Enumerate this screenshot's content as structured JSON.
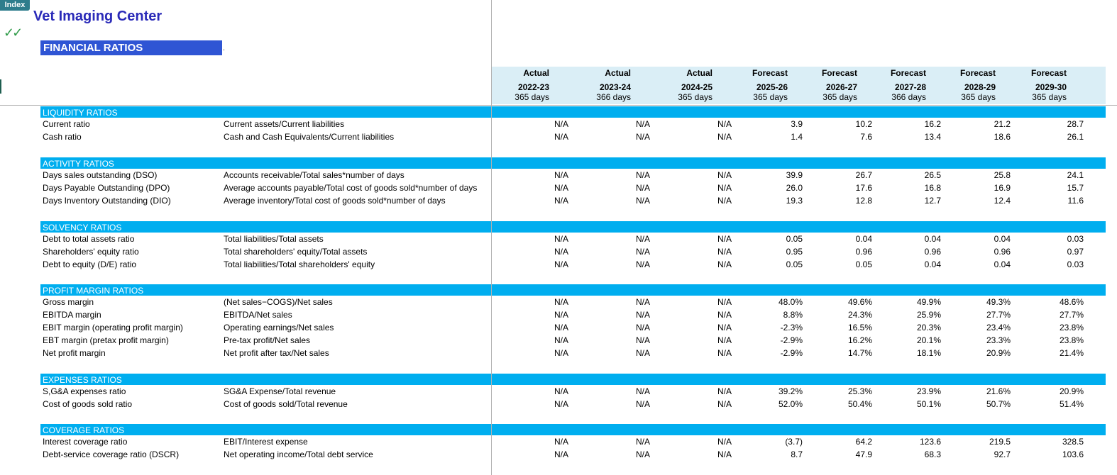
{
  "index_button": "Index",
  "company_name": "Vet Imaging Center",
  "check_mark": "✓✓",
  "section_title": "FINANCIAL RATIOS",
  "dot": ".",
  "columns": [
    {
      "status": "Actual",
      "year": "2022-23",
      "days": "365 days"
    },
    {
      "status": "Actual",
      "year": "2023-24",
      "days": "366 days"
    },
    {
      "status": "Actual",
      "year": "2024-25",
      "days": "365 days"
    },
    {
      "status": "Forecast",
      "year": "2025-26",
      "days": "365 days"
    },
    {
      "status": "Forecast",
      "year": "2026-27",
      "days": "365 days"
    },
    {
      "status": "Forecast",
      "year": "2027-28",
      "days": "366 days"
    },
    {
      "status": "Forecast",
      "year": "2028-29",
      "days": "365 days"
    },
    {
      "status": "Forecast",
      "year": "2029-30",
      "days": "365 days"
    }
  ],
  "sections": [
    {
      "label": "LIQUIDITY RATIOS",
      "rows": [
        {
          "name": "Current ratio",
          "formula": "Current assets/Current liabilities",
          "values": [
            "N/A",
            "N/A",
            "N/A",
            "3.9",
            "10.2",
            "16.2",
            "21.2",
            "28.7"
          ]
        },
        {
          "name": "Cash ratio",
          "formula": "Cash and Cash Equivalents/Current liabilities",
          "values": [
            "N/A",
            "N/A",
            "N/A",
            "1.4",
            "7.6",
            "13.4",
            "18.6",
            "26.1"
          ]
        }
      ]
    },
    {
      "label": "ACTIVITY RATIOS",
      "rows": [
        {
          "name": "Days sales outstanding (DSO)",
          "formula": "Accounts receivable/Total sales*number of days",
          "values": [
            "N/A",
            "N/A",
            "N/A",
            "39.9",
            "26.7",
            "26.5",
            "25.8",
            "24.1"
          ]
        },
        {
          "name": "Days Payable Outstanding (DPO)",
          "formula": "Average accounts payable/Total cost of goods sold*number of days",
          "values": [
            "N/A",
            "N/A",
            "N/A",
            "26.0",
            "17.6",
            "16.8",
            "16.9",
            "15.7"
          ]
        },
        {
          "name": "Days Inventory Outstanding (DIO)",
          "formula": "Average inventory/Total cost of goods sold*number of days",
          "values": [
            "N/A",
            "N/A",
            "N/A",
            "19.3",
            "12.8",
            "12.7",
            "12.4",
            "11.6"
          ]
        }
      ]
    },
    {
      "label": "SOLVENCY RATIOS",
      "rows": [
        {
          "name": "Debt to total assets ratio",
          "formula": "Total liabilities/Total assets",
          "values": [
            "N/A",
            "N/A",
            "N/A",
            "0.05",
            "0.04",
            "0.04",
            "0.04",
            "0.03"
          ]
        },
        {
          "name": "Shareholders' equity ratio",
          "formula": "Total shareholders' equity/Total assets",
          "values": [
            "N/A",
            "N/A",
            "N/A",
            "0.95",
            "0.96",
            "0.96",
            "0.96",
            "0.97"
          ]
        },
        {
          "name": "Debt to equity (D/E) ratio",
          "formula": "Total liabilities/Total shareholders' equity",
          "values": [
            "N/A",
            "N/A",
            "N/A",
            "0.05",
            "0.05",
            "0.04",
            "0.04",
            "0.03"
          ]
        }
      ]
    },
    {
      "label": "PROFIT MARGIN RATIOS",
      "rows": [
        {
          "name": "Gross margin",
          "formula": "(Net sales−COGS)/Net sales",
          "values": [
            "N/A",
            "N/A",
            "N/A",
            "48.0%",
            "49.6%",
            "49.9%",
            "49.3%",
            "48.6%"
          ]
        },
        {
          "name": "EBITDA margin",
          "formula": "EBITDA/Net sales",
          "values": [
            "N/A",
            "N/A",
            "N/A",
            "8.8%",
            "24.3%",
            "25.9%",
            "27.7%",
            "27.7%"
          ]
        },
        {
          "name": "EBIT margin (operating profit margin)",
          "formula": "Operating earnings/Net sales",
          "values": [
            "N/A",
            "N/A",
            "N/A",
            "-2.3%",
            "16.5%",
            "20.3%",
            "23.4%",
            "23.8%"
          ]
        },
        {
          "name": "EBT margin (pretax profit margin)",
          "formula": "Pre-tax profit/Net sales",
          "values": [
            "N/A",
            "N/A",
            "N/A",
            "-2.9%",
            "16.2%",
            "20.1%",
            "23.3%",
            "23.8%"
          ]
        },
        {
          "name": "Net profit margin",
          "formula": "Net profit after tax/Net sales",
          "values": [
            "N/A",
            "N/A",
            "N/A",
            "-2.9%",
            "14.7%",
            "18.1%",
            "20.9%",
            "21.4%"
          ]
        }
      ]
    },
    {
      "label": "EXPENSES RATIOS",
      "rows": [
        {
          "name": "S,G&A expenses ratio",
          "formula": "SG&A Expense/Total revenue",
          "values": [
            "N/A",
            "N/A",
            "N/A",
            "39.2%",
            "25.3%",
            "23.9%",
            "21.6%",
            "20.9%"
          ]
        },
        {
          "name": "Cost of goods sold ratio",
          "formula": "Cost of goods sold/Total revenue",
          "values": [
            "N/A",
            "N/A",
            "N/A",
            "52.0%",
            "50.4%",
            "50.1%",
            "50.7%",
            "51.4%"
          ]
        }
      ]
    },
    {
      "label": "COVERAGE RATIOS",
      "rows": [
        {
          "name": "Interest coverage ratio",
          "formula": "EBIT/Interest expense",
          "values": [
            "N/A",
            "N/A",
            "N/A",
            "(3.7)",
            "64.2",
            "123.6",
            "219.5",
            "328.5"
          ]
        },
        {
          "name": "Debt-service coverage ratio (DSCR)",
          "formula": "Net operating income/Total debt service",
          "values": [
            "N/A",
            "N/A",
            "N/A",
            "8.7",
            "47.9",
            "68.3",
            "92.7",
            "103.6"
          ]
        }
      ]
    }
  ]
}
